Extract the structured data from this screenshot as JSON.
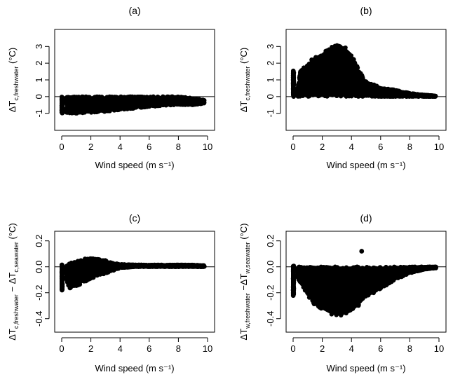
{
  "chart_data": [
    {
      "type": "scatter",
      "title": "(a)",
      "xlabel": "Wind speed (m s⁻¹)",
      "ylabel_parts": [
        "ΔT",
        "c,freshwater",
        " (°C)"
      ],
      "xlim": [
        0,
        10
      ],
      "ylim": [
        -1.6,
        3.6
      ],
      "x_ticks": [
        0,
        2,
        4,
        6,
        8,
        10
      ],
      "y_ticks": [
        -1,
        0,
        1,
        2,
        3
      ],
      "hline": 0,
      "grid": false,
      "legend": "none",
      "envelope": {
        "x": [
          0,
          0.3,
          0.5,
          1,
          2,
          3,
          4,
          5,
          6,
          7,
          8,
          9,
          9.8
        ],
        "upper": [
          0,
          0,
          0,
          0,
          0,
          0,
          0,
          0,
          0,
          0,
          0,
          -0.1,
          -0.2
        ],
        "lower": [
          -1.0,
          -1.0,
          -1.0,
          -1.0,
          -0.95,
          -0.9,
          -0.8,
          -0.7,
          -0.6,
          -0.55,
          -0.5,
          -0.5,
          -0.4
        ]
      }
    },
    {
      "type": "scatter",
      "title": "(b)",
      "xlabel": "Wind speed (m s⁻¹)",
      "ylabel_parts": [
        "ΔT",
        "c,freshwater",
        " (°C)"
      ],
      "xlim": [
        0,
        10
      ],
      "ylim": [
        -1.6,
        3.6
      ],
      "x_ticks": [
        0,
        2,
        4,
        6,
        8,
        10
      ],
      "y_ticks": [
        -1,
        0,
        1,
        2,
        3
      ],
      "hline": 0,
      "grid": false,
      "legend": "none",
      "envelope": {
        "x": [
          0,
          0.3,
          0.5,
          1,
          1.5,
          2,
          2.5,
          3,
          3.5,
          4,
          4.5,
          5,
          6,
          7,
          8,
          9,
          9.8
        ],
        "upper": [
          1.6,
          0.5,
          1.5,
          2.0,
          2.4,
          2.6,
          2.9,
          3.1,
          3.0,
          2.6,
          1.6,
          0.9,
          0.55,
          0.4,
          0.2,
          0.1,
          0.05
        ],
        "lower": [
          0,
          0,
          0,
          0,
          0,
          0,
          0,
          0,
          0,
          0,
          0,
          0,
          0,
          0,
          0,
          0,
          0
        ]
      }
    },
    {
      "type": "scatter",
      "title": "(c)",
      "xlabel": "Wind speed (m s⁻¹)",
      "ylabel_parts": [
        "ΔT",
        "c,freshwater",
        " − ΔT",
        "c,seawater",
        " (°C)"
      ],
      "xlim": [
        0,
        10
      ],
      "ylim": [
        -0.45,
        0.22
      ],
      "x_ticks": [
        0,
        2,
        4,
        6,
        8,
        10
      ],
      "y_ticks": [
        -0.4,
        -0.2,
        0.0,
        0.2
      ],
      "y_tick_labels": [
        "-0.4",
        "-0.2",
        "0.0",
        "0.2"
      ],
      "hline": 0,
      "grid": false,
      "legend": "none",
      "envelope": {
        "x": [
          0,
          0.3,
          0.5,
          1,
          1.5,
          2,
          2.5,
          3,
          3.5,
          4,
          5,
          6,
          7,
          8,
          9,
          9.8
        ],
        "upper": [
          0.02,
          0.0,
          0.03,
          0.04,
          0.06,
          0.07,
          0.06,
          0.05,
          0.03,
          0.02,
          0.015,
          0.015,
          0.015,
          0.015,
          0.015,
          0.01
        ],
        "lower": [
          -0.19,
          -0.1,
          -0.17,
          -0.15,
          -0.12,
          -0.09,
          -0.07,
          -0.05,
          -0.03,
          -0.01,
          0.0,
          0.0,
          0.0,
          0.0,
          0.0,
          0.0
        ]
      }
    },
    {
      "type": "scatter",
      "title": "(d)",
      "xlabel": "Wind speed (m s⁻¹)",
      "ylabel_parts": [
        "ΔT",
        "w,freshwater",
        " −ΔT",
        "w,seawater",
        " (°C)"
      ],
      "xlim": [
        0,
        10
      ],
      "ylim": [
        -0.45,
        0.22
      ],
      "x_ticks": [
        0,
        2,
        4,
        6,
        8,
        10
      ],
      "y_ticks": [
        -0.4,
        -0.2,
        0.0,
        0.2
      ],
      "y_tick_labels": [
        "-0.4",
        "-0.2",
        "0.0",
        "0.2"
      ],
      "hline": 0,
      "grid": false,
      "legend": "none",
      "envelope": {
        "x": [
          0,
          0.3,
          0.5,
          1,
          1.5,
          2,
          2.5,
          3,
          3.5,
          4,
          4.5,
          5,
          6,
          7,
          8,
          9,
          9.8
        ],
        "upper": [
          0.01,
          0.0,
          0.0,
          0.0,
          0.0,
          0.0,
          0.0,
          0.0,
          0.0,
          0.0,
          0.0,
          0.0,
          0.0,
          0.0,
          0.0,
          0.0,
          0.0
        ],
        "lower": [
          -0.23,
          -0.1,
          -0.12,
          -0.22,
          -0.3,
          -0.33,
          -0.36,
          -0.38,
          -0.37,
          -0.35,
          -0.3,
          -0.24,
          -0.17,
          -0.1,
          -0.05,
          -0.02,
          -0.01
        ]
      },
      "outliers": [
        {
          "x": 4.7,
          "y": 0.12
        }
      ]
    }
  ]
}
